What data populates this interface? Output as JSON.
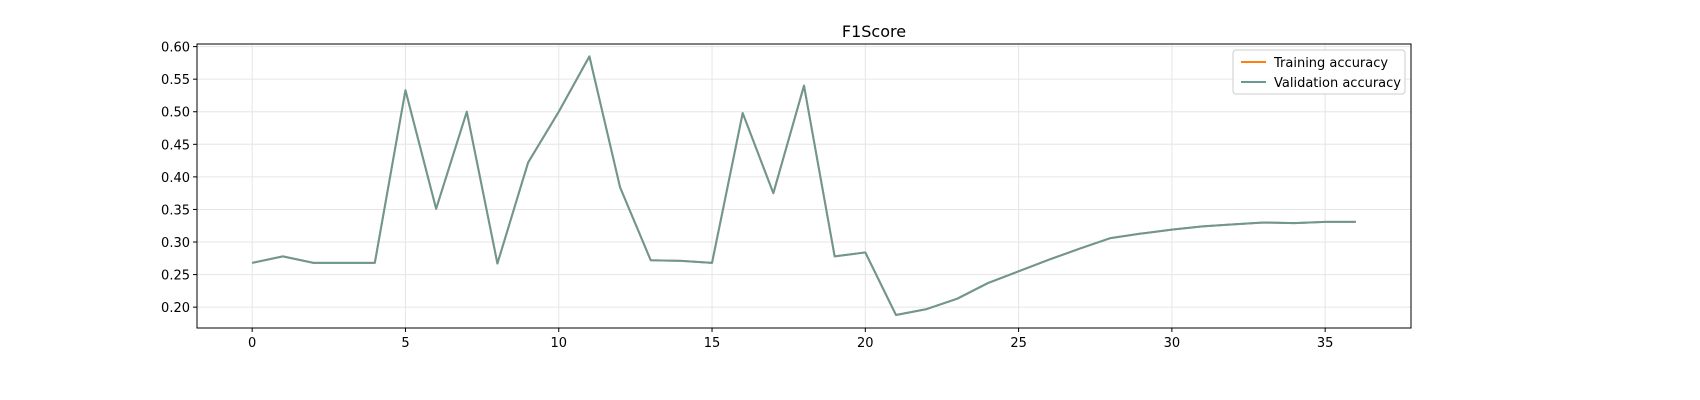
{
  "chart_data": {
    "type": "line",
    "title": "F1Score",
    "xlabel": "",
    "ylabel": "",
    "xlim": [
      -1.8,
      37.8
    ],
    "ylim": [
      0.168,
      0.604
    ],
    "xticks": [
      0,
      5,
      10,
      15,
      20,
      25,
      30,
      35
    ],
    "yticks": [
      0.2,
      0.25,
      0.3,
      0.35,
      0.4,
      0.45,
      0.5,
      0.55,
      0.6
    ],
    "ytick_labels": [
      "0.20",
      "0.25",
      "0.30",
      "0.35",
      "0.40",
      "0.45",
      "0.50",
      "0.55",
      "0.60"
    ],
    "grid": true,
    "legend_position": "top-right",
    "x": [
      0,
      1,
      2,
      3,
      4,
      5,
      6,
      7,
      8,
      9,
      10,
      11,
      12,
      13,
      14,
      15,
      16,
      17,
      18,
      19,
      20,
      21,
      22,
      23,
      24,
      25,
      26,
      27,
      28,
      29,
      30,
      31,
      32,
      33,
      34,
      35,
      36
    ],
    "series": [
      {
        "name": "Training accuracy",
        "color": "#ff7f0e",
        "values": [
          0.268,
          0.278,
          0.268,
          0.268,
          0.268,
          0.533,
          0.351,
          0.5,
          0.267,
          0.422,
          0.5,
          0.585,
          0.384,
          0.272,
          0.271,
          0.268,
          0.498,
          0.375,
          0.54,
          0.278,
          0.284,
          0.188,
          0.197,
          0.213,
          0.237,
          0.255,
          0.273,
          0.29,
          0.306,
          0.313,
          0.319,
          0.324,
          0.327,
          0.33,
          0.329,
          0.331,
          0.331
        ]
      },
      {
        "name": "Validation accuracy",
        "color": "#6a9994",
        "values": [
          0.268,
          0.278,
          0.268,
          0.268,
          0.268,
          0.533,
          0.351,
          0.5,
          0.267,
          0.422,
          0.5,
          0.585,
          0.384,
          0.272,
          0.271,
          0.268,
          0.498,
          0.375,
          0.54,
          0.278,
          0.284,
          0.188,
          0.197,
          0.213,
          0.237,
          0.255,
          0.273,
          0.29,
          0.306,
          0.313,
          0.319,
          0.324,
          0.327,
          0.33,
          0.329,
          0.331,
          0.331
        ]
      }
    ]
  }
}
